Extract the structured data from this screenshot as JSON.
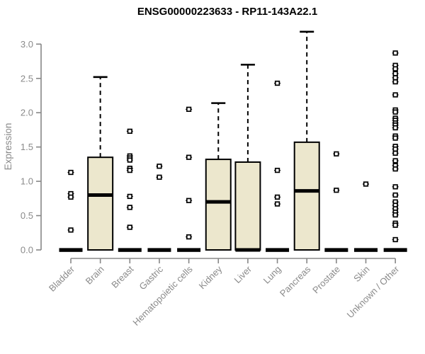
{
  "chart_data": {
    "type": "boxplot",
    "title": "ENSG00000223633 - RP11-143A22.1",
    "xlabel": "",
    "ylabel": "Expression",
    "ylim": [
      0,
      3.2
    ],
    "grid": false,
    "legend": null,
    "ytick_labels": [
      "0.0",
      "0.5",
      "1.0",
      "1.5",
      "2.0",
      "2.5",
      "3.0"
    ],
    "ytick_values": [
      0.0,
      0.5,
      1.0,
      1.5,
      2.0,
      2.5,
      3.0
    ],
    "categories": [
      "Bladder",
      "Brain",
      "Breast",
      "Gastric",
      "Hematopoietic cells",
      "Kidney",
      "Liver",
      "Lung",
      "Pancreas",
      "Prostate",
      "Skin",
      "Unknown / Other"
    ],
    "boxes": [
      {
        "category": "Bladder",
        "collapsed": true,
        "q1": 0,
        "median": 0,
        "q3": 0,
        "whisker_low": 0,
        "whisker_high": 0,
        "outliers": [
          1.13,
          0.82,
          0.77,
          0.29
        ]
      },
      {
        "category": "Brain",
        "collapsed": false,
        "q1": 0,
        "median": 0.8,
        "q3": 1.35,
        "whisker_low": 0,
        "whisker_high": 2.52,
        "outliers": []
      },
      {
        "category": "Breast",
        "collapsed": true,
        "q1": 0,
        "median": 0,
        "q3": 0,
        "whisker_low": 0,
        "whisker_high": 0,
        "outliers": [
          1.73,
          1.37,
          1.34,
          1.31,
          1.19,
          1.16,
          0.78,
          0.62,
          0.33
        ]
      },
      {
        "category": "Gastric",
        "collapsed": true,
        "q1": 0,
        "median": 0,
        "q3": 0,
        "whisker_low": 0,
        "whisker_high": 0,
        "outliers": [
          1.22,
          1.06
        ]
      },
      {
        "category": "Hematopoietic cells",
        "collapsed": true,
        "q1": 0,
        "median": 0,
        "q3": 0,
        "whisker_low": 0,
        "whisker_high": 0,
        "outliers": [
          2.05,
          1.35,
          0.72,
          0.19
        ]
      },
      {
        "category": "Kidney",
        "collapsed": false,
        "q1": 0,
        "median": 0.7,
        "q3": 1.32,
        "whisker_low": 0,
        "whisker_high": 2.14,
        "outliers": []
      },
      {
        "category": "Liver",
        "collapsed": false,
        "q1": 0,
        "median": 0.0,
        "q3": 1.28,
        "whisker_low": 0,
        "whisker_high": 2.7,
        "outliers": []
      },
      {
        "category": "Lung",
        "collapsed": true,
        "q1": 0,
        "median": 0,
        "q3": 0,
        "whisker_low": 0,
        "whisker_high": 0,
        "outliers": [
          2.43,
          1.16,
          0.77,
          0.67
        ]
      },
      {
        "category": "Pancreas",
        "collapsed": false,
        "q1": 0,
        "median": 0.86,
        "q3": 1.57,
        "whisker_low": 0,
        "whisker_high": 3.18,
        "outliers": []
      },
      {
        "category": "Prostate",
        "collapsed": true,
        "q1": 0,
        "median": 0,
        "q3": 0,
        "whisker_low": 0,
        "whisker_high": 0,
        "outliers": [
          1.4,
          0.87
        ]
      },
      {
        "category": "Skin",
        "collapsed": true,
        "q1": 0,
        "median": 0,
        "q3": 0,
        "whisker_low": 0,
        "whisker_high": 0,
        "outliers": [
          0.96
        ]
      },
      {
        "category": "Unknown / Other",
        "collapsed": true,
        "q1": 0,
        "median": 0,
        "q3": 0,
        "whisker_low": 0,
        "whisker_high": 0,
        "outliers": [
          2.87,
          2.69,
          2.64,
          2.57,
          2.51,
          2.45,
          2.26,
          2.04,
          2.01,
          1.92,
          1.89,
          1.85,
          1.82,
          1.78,
          1.66,
          1.63,
          1.51,
          1.47,
          1.41,
          1.3,
          1.23,
          1.18,
          0.92,
          0.8,
          0.7,
          0.65,
          0.6,
          0.55,
          0.51,
          0.39,
          0.36,
          0.15
        ]
      }
    ]
  },
  "colors": {
    "background": "#ffffff",
    "box_fill": "#ece7cd",
    "box_border": "#000000",
    "median": "#000000",
    "whisker": "#000000",
    "outlier_stroke": "#000000",
    "outlier_fill": "#ffffff",
    "axis_line": "#878787",
    "tick_label": "#8a8a8a",
    "title": "#000000"
  }
}
